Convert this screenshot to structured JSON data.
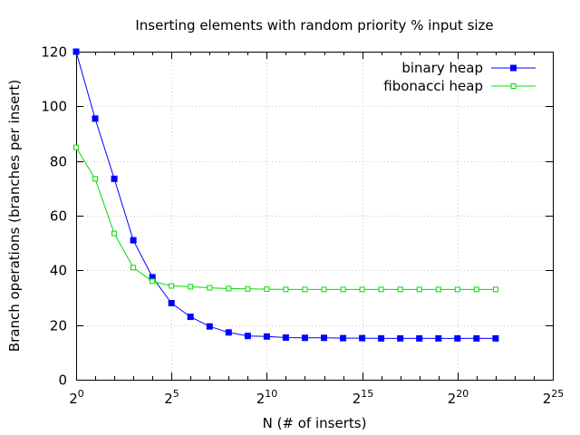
{
  "chart_data": {
    "type": "line",
    "title": "Inserting elements with random priority % input size",
    "xlabel": "N (# of inserts)",
    "ylabel": "Branch operations (branches per insert)",
    "x_scale": "log2",
    "x_tick_base": "2",
    "x_tick_exponents": [
      "0",
      "5",
      "10",
      "15",
      "20",
      "25"
    ],
    "xlim": [
      1,
      33554432
    ],
    "ylim": [
      0,
      120
    ],
    "y_ticks": [
      "0",
      "20",
      "40",
      "60",
      "80",
      "100",
      "120"
    ],
    "grid": true,
    "legend_position": "top-right",
    "x": [
      1,
      2,
      4,
      8,
      16,
      32,
      64,
      128,
      256,
      512,
      1024,
      2048,
      4096,
      8192,
      16384,
      32768,
      65536,
      131072,
      262144,
      524288,
      1048576,
      2097152,
      4194304
    ],
    "series": [
      {
        "name": "binary heap",
        "color": "#0000ff",
        "marker": "filled-square",
        "values": [
          120,
          95.5,
          73.5,
          51,
          37.5,
          28,
          23,
          19.5,
          17.3,
          16,
          15.8,
          15.4,
          15.3,
          15.3,
          15.2,
          15.2,
          15.1,
          15.1,
          15.1,
          15.1,
          15.1,
          15.1,
          15.1
        ]
      },
      {
        "name": "fibonacci heap",
        "color": "#00dd00",
        "marker": "open-square",
        "values": [
          85,
          73.5,
          53.5,
          41,
          36,
          34.3,
          34,
          33.6,
          33.3,
          33.2,
          33.1,
          33,
          33,
          33,
          33,
          33,
          33,
          33,
          33,
          33,
          33,
          33,
          33
        ]
      }
    ]
  }
}
